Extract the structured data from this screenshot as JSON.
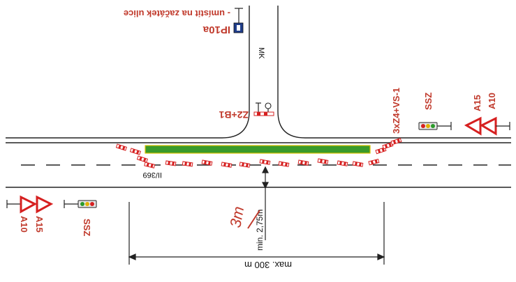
{
  "labels": {
    "note_top": "- umístit na začátek ulice",
    "sign_ip10a": "IP10a",
    "road_mk": "MK",
    "sign_z2b1": "Z2+B1",
    "sign_group_right": "3xZ4+VS-1",
    "ssz_right": "SSZ",
    "a15_right": "A15",
    "a10_right": "A10",
    "road_ii369": "II/369",
    "a10_left": "A10",
    "a15_left": "A15",
    "ssz_left": "SSZ",
    "min_dist": "min. 2,75m",
    "handwritten_3m": "3m",
    "max_dist": "max. 300 m"
  },
  "colors": {
    "road_line": "#222222",
    "label_red": "#c0392b",
    "green_island": "#3a9a2a",
    "island_edge": "#d9c200",
    "barrier_red": "#d62020",
    "signal_body": "#e8e8e8",
    "sign_blue": "#1f3d8a"
  },
  "icons": {
    "traffic_signal": "traffic-light-icon",
    "warning_triangle": "warning-triangle-icon",
    "info_sign": "ip10a-sign-icon",
    "barrier": "z2-barrier-icon"
  }
}
